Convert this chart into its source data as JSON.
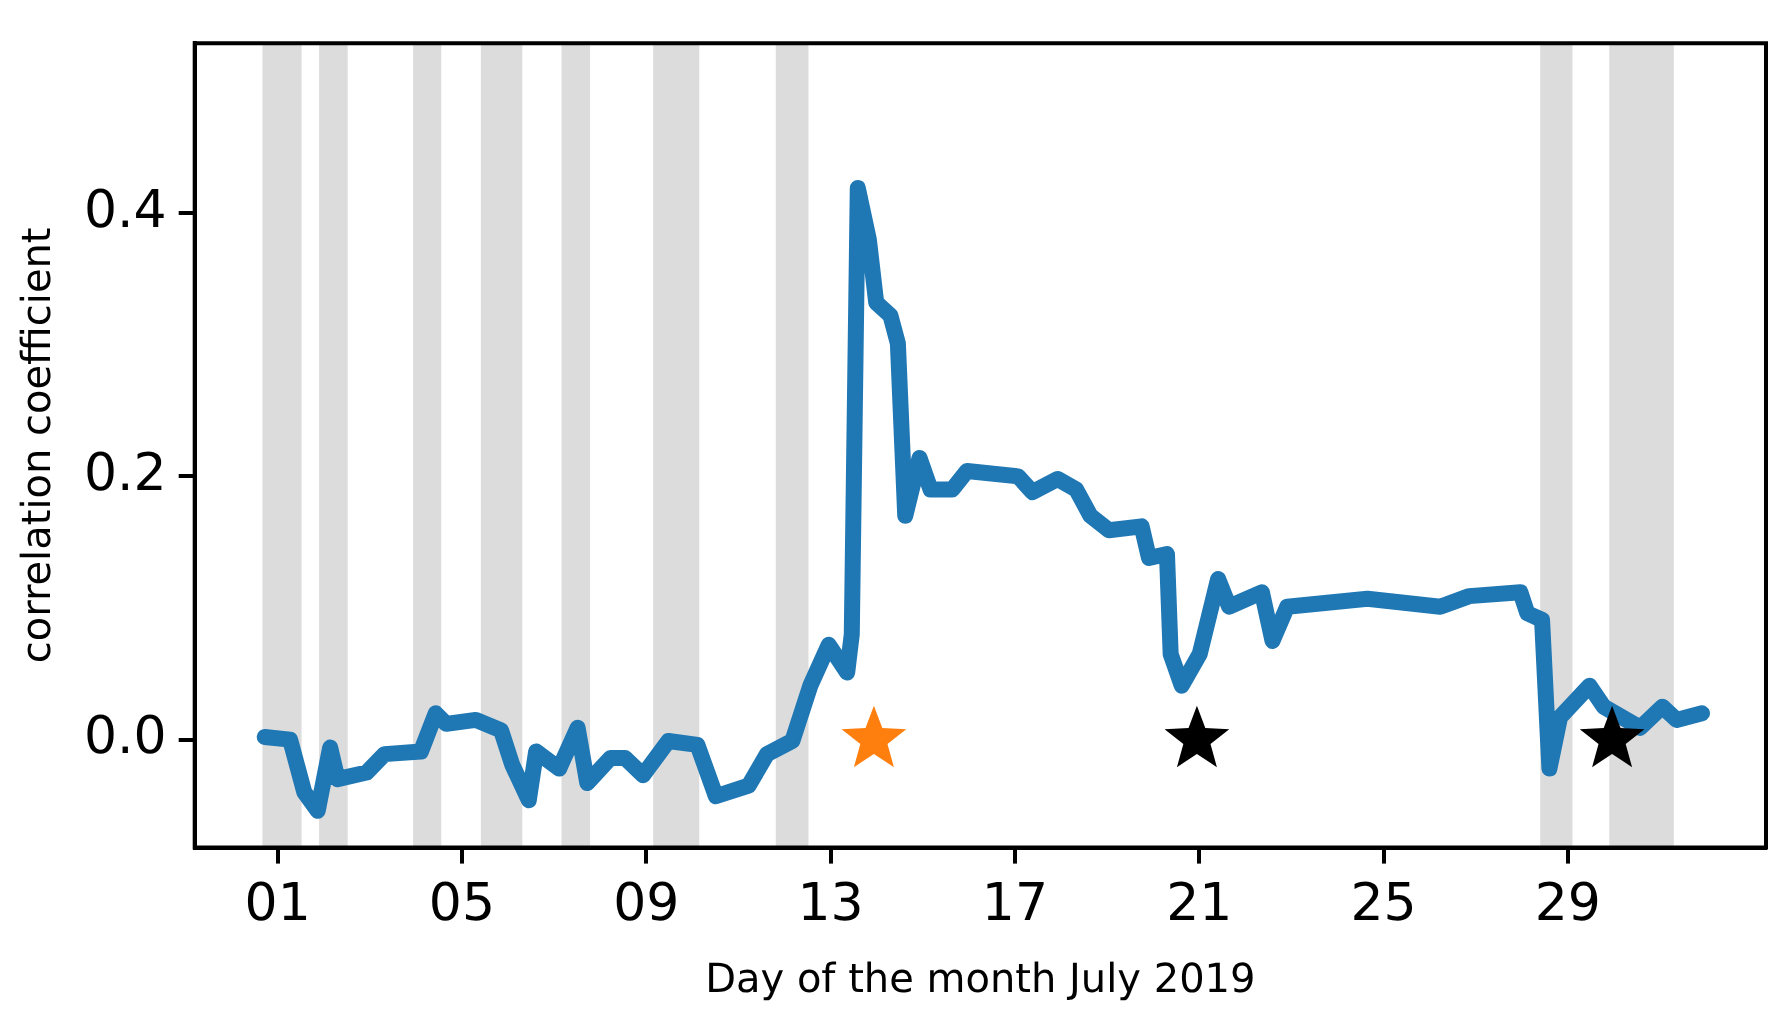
{
  "chart_data": {
    "type": "line",
    "xlabel": "Day of the month July 2019",
    "ylabel": "correlation coefficient",
    "xlim": [
      -0.8,
      33.3
    ],
    "xticks": [
      {
        "value": 1,
        "label": "01"
      },
      {
        "value": 5,
        "label": "05"
      },
      {
        "value": 9,
        "label": "09"
      },
      {
        "value": 13,
        "label": "13"
      },
      {
        "value": 17,
        "label": "17"
      },
      {
        "value": 21,
        "label": "21"
      },
      {
        "value": 25,
        "label": "25"
      },
      {
        "value": 29,
        "label": "29"
      }
    ],
    "ylim": [
      -0.082,
      0.529
    ],
    "yticks": [
      {
        "value": 0,
        "label": "0.0"
      },
      0.2,
      0.4
    ],
    "grid": false,
    "legend": false,
    "line_style": "solid",
    "bands": [
      {
        "axis": "x",
        "from": 0.67,
        "to": 1.52,
        "color": "#dcdcdc"
      },
      {
        "axis": "x",
        "from": 1.9,
        "to": 2.52,
        "color": "#dcdcdc"
      },
      {
        "axis": "x",
        "from": 3.94,
        "to": 4.55,
        "color": "#dcdcdc"
      },
      {
        "axis": "x",
        "from": 5.41,
        "to": 6.31,
        "color": "#dcdcdc"
      },
      {
        "axis": "x",
        "from": 7.16,
        "to": 7.78,
        "color": "#dcdcdc"
      },
      {
        "axis": "x",
        "from": 9.15,
        "to": 10.15,
        "color": "#dcdcdc"
      },
      {
        "axis": "x",
        "from": 11.81,
        "to": 12.52,
        "color": "#dcdcdc"
      },
      {
        "axis": "x",
        "from": 28.4,
        "to": 29.1,
        "color": "#dcdcdc"
      },
      {
        "axis": "x",
        "from": 29.9,
        "to": 31.3,
        "color": "#dcdcdc"
      }
    ],
    "series": [
      {
        "type": "line",
        "marker": "none",
        "color": "#1f77b4",
        "x": [
          0.72,
          1.27,
          1.58,
          1.87,
          2.14,
          2.3,
          2.93,
          3.32,
          4.11,
          4.43,
          4.66,
          5.3,
          5.85,
          6.09,
          6.45,
          6.61,
          7.11,
          7.51,
          7.72,
          8.22,
          8.54,
          8.93,
          9.48,
          10.11,
          10.51,
          11.22,
          11.62,
          12.17,
          12.56,
          12.96,
          13.36,
          13.46,
          13.59,
          13.83,
          13.99,
          14.3,
          14.46,
          14.62,
          14.93,
          15.17,
          15.64,
          15.96,
          17.07,
          17.38,
          17.93,
          18.33,
          18.64,
          19.04,
          19.75,
          19.91,
          20.3,
          20.38,
          20.62,
          21.01,
          21.41,
          21.65,
          22.36,
          22.59,
          22.91,
          24.65,
          26.23,
          26.86,
          27.97,
          28.12,
          28.44,
          28.6,
          28.83,
          29.47,
          29.78,
          30.57,
          31.05,
          31.36,
          31.91
        ],
        "values": [
          0.002,
          0.0,
          -0.04,
          -0.054,
          -0.006,
          -0.03,
          -0.025,
          -0.011,
          -0.009,
          0.02,
          0.012,
          0.015,
          0.007,
          -0.019,
          -0.046,
          -0.009,
          -0.022,
          0.009,
          -0.033,
          -0.014,
          -0.014,
          -0.027,
          -0.001,
          -0.004,
          -0.043,
          -0.035,
          -0.011,
          -0.001,
          0.041,
          0.072,
          0.051,
          0.08,
          0.419,
          0.38,
          0.332,
          0.322,
          0.301,
          0.17,
          0.214,
          0.19,
          0.19,
          0.204,
          0.2,
          0.188,
          0.198,
          0.19,
          0.17,
          0.159,
          0.162,
          0.138,
          0.141,
          0.065,
          0.041,
          0.065,
          0.122,
          0.101,
          0.112,
          0.075,
          0.101,
          0.107,
          0.101,
          0.109,
          0.112,
          0.096,
          0.091,
          -0.022,
          0.017,
          0.041,
          0.025,
          0.009,
          0.025,
          0.015,
          0.02
        ]
      },
      {
        "type": "scatter",
        "marker": "star",
        "x": [
          13.94,
          20.95,
          29.96
        ],
        "values": [
          0,
          0,
          0
        ],
        "colors": [
          "#ff7f0e",
          "#000000",
          "#000000"
        ]
      }
    ]
  }
}
